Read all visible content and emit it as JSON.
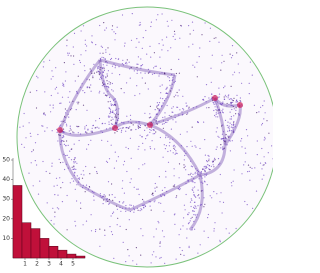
{
  "chart_data": {
    "type": "histogram",
    "bins": [
      0,
      0.75,
      1.5,
      2.25,
      3,
      3.75,
      4.5,
      5.25,
      6
    ],
    "values": [
      37,
      18,
      15,
      10,
      6,
      4,
      2,
      1
    ],
    "color": "#c0103a",
    "xlim": [
      0,
      6
    ],
    "xticks": [
      1,
      2,
      3,
      4,
      5
    ],
    "ylim": [
      0,
      50
    ],
    "yticks": [
      10,
      20,
      30,
      40,
      50
    ]
  }
}
